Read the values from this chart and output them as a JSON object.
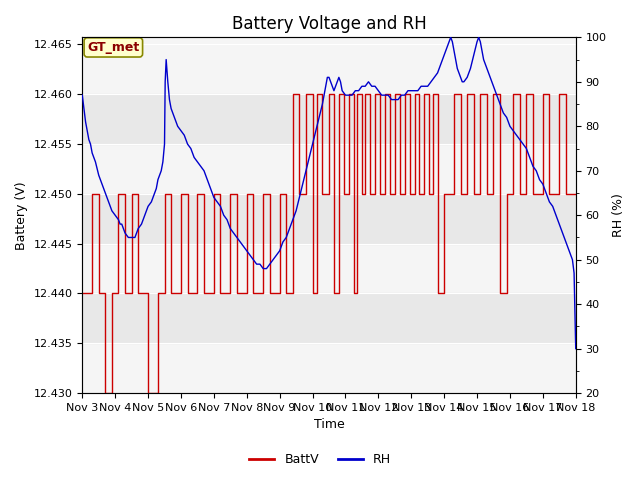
{
  "title": "Battery Voltage and RH",
  "xlabel": "Time",
  "ylabel_left": "Battery (V)",
  "ylabel_right": "RH (%)",
  "annotation": "GT_met",
  "ylim_left": [
    12.43,
    12.4657
  ],
  "ylim_right": [
    20,
    100
  ],
  "yticks_left": [
    12.43,
    12.435,
    12.44,
    12.445,
    12.45,
    12.455,
    12.46,
    12.465
  ],
  "yticks_right": [
    20,
    30,
    40,
    50,
    60,
    70,
    80,
    90,
    100
  ],
  "xtick_labels": [
    "Nov 3",
    "Nov 4",
    "Nov 5",
    "Nov 6",
    "Nov 7",
    "Nov 8",
    "Nov 9",
    "Nov 10",
    "Nov 11",
    "Nov 12",
    "Nov 13",
    "Nov 14",
    "Nov 15",
    "Nov 16",
    "Nov 17",
    "Nov 18"
  ],
  "battv_color": "#cc0000",
  "rh_color": "#0000cc",
  "legend_battv": "BattV",
  "legend_rh": "RH",
  "bg_outer": "#ffffff",
  "bg_inner": "#f5f5f5",
  "bg_band_light": "#e8e8e8",
  "title_fontsize": 12,
  "label_fontsize": 9,
  "tick_fontsize": 8,
  "num_days": 15,
  "battv_data": [
    [
      0.0,
      12.44
    ],
    [
      0.3,
      12.44
    ],
    [
      0.3,
      12.45
    ],
    [
      0.5,
      12.45
    ],
    [
      0.5,
      12.44
    ],
    [
      0.7,
      12.44
    ],
    [
      0.7,
      12.43
    ],
    [
      0.9,
      12.43
    ],
    [
      0.9,
      12.44
    ],
    [
      1.1,
      12.44
    ],
    [
      1.1,
      12.45
    ],
    [
      1.3,
      12.45
    ],
    [
      1.3,
      12.44
    ],
    [
      1.5,
      12.44
    ],
    [
      1.5,
      12.45
    ],
    [
      1.7,
      12.45
    ],
    [
      1.7,
      12.44
    ],
    [
      2.0,
      12.44
    ],
    [
      2.0,
      12.43
    ],
    [
      2.3,
      12.43
    ],
    [
      2.3,
      12.44
    ],
    [
      2.5,
      12.44
    ],
    [
      2.5,
      12.45
    ],
    [
      2.7,
      12.45
    ],
    [
      2.7,
      12.44
    ],
    [
      3.0,
      12.44
    ],
    [
      3.0,
      12.45
    ],
    [
      3.2,
      12.45
    ],
    [
      3.2,
      12.44
    ],
    [
      3.5,
      12.44
    ],
    [
      3.5,
      12.45
    ],
    [
      3.7,
      12.45
    ],
    [
      3.7,
      12.44
    ],
    [
      4.0,
      12.44
    ],
    [
      4.0,
      12.45
    ],
    [
      4.2,
      12.45
    ],
    [
      4.2,
      12.44
    ],
    [
      4.5,
      12.44
    ],
    [
      4.5,
      12.45
    ],
    [
      4.7,
      12.45
    ],
    [
      4.7,
      12.44
    ],
    [
      5.0,
      12.44
    ],
    [
      5.0,
      12.45
    ],
    [
      5.2,
      12.45
    ],
    [
      5.2,
      12.44
    ],
    [
      5.5,
      12.44
    ],
    [
      5.5,
      12.45
    ],
    [
      5.7,
      12.45
    ],
    [
      5.7,
      12.44
    ],
    [
      6.0,
      12.44
    ],
    [
      6.0,
      12.45
    ],
    [
      6.2,
      12.45
    ],
    [
      6.2,
      12.44
    ],
    [
      6.4,
      12.44
    ],
    [
      6.4,
      12.46
    ],
    [
      6.6,
      12.46
    ],
    [
      6.6,
      12.45
    ],
    [
      6.8,
      12.45
    ],
    [
      6.8,
      12.46
    ],
    [
      7.0,
      12.46
    ],
    [
      7.0,
      12.44
    ],
    [
      7.15,
      12.44
    ],
    [
      7.15,
      12.46
    ],
    [
      7.3,
      12.46
    ],
    [
      7.3,
      12.45
    ],
    [
      7.5,
      12.45
    ],
    [
      7.5,
      12.46
    ],
    [
      7.65,
      12.46
    ],
    [
      7.65,
      12.44
    ],
    [
      7.8,
      12.44
    ],
    [
      7.8,
      12.46
    ],
    [
      7.95,
      12.46
    ],
    [
      7.95,
      12.45
    ],
    [
      8.1,
      12.45
    ],
    [
      8.1,
      12.46
    ],
    [
      8.25,
      12.46
    ],
    [
      8.25,
      12.44
    ],
    [
      8.35,
      12.44
    ],
    [
      8.35,
      12.46
    ],
    [
      8.5,
      12.46
    ],
    [
      8.5,
      12.45
    ],
    [
      8.6,
      12.45
    ],
    [
      8.6,
      12.46
    ],
    [
      8.75,
      12.46
    ],
    [
      8.75,
      12.45
    ],
    [
      8.9,
      12.45
    ],
    [
      8.9,
      12.46
    ],
    [
      9.05,
      12.46
    ],
    [
      9.05,
      12.45
    ],
    [
      9.2,
      12.45
    ],
    [
      9.2,
      12.46
    ],
    [
      9.35,
      12.46
    ],
    [
      9.35,
      12.45
    ],
    [
      9.5,
      12.45
    ],
    [
      9.5,
      12.46
    ],
    [
      9.65,
      12.46
    ],
    [
      9.65,
      12.45
    ],
    [
      9.8,
      12.45
    ],
    [
      9.8,
      12.46
    ],
    [
      9.95,
      12.46
    ],
    [
      9.95,
      12.45
    ],
    [
      10.1,
      12.45
    ],
    [
      10.1,
      12.46
    ],
    [
      10.25,
      12.46
    ],
    [
      10.25,
      12.45
    ],
    [
      10.4,
      12.45
    ],
    [
      10.4,
      12.46
    ],
    [
      10.55,
      12.46
    ],
    [
      10.55,
      12.45
    ],
    [
      10.65,
      12.45
    ],
    [
      10.65,
      12.46
    ],
    [
      10.8,
      12.46
    ],
    [
      10.8,
      12.44
    ],
    [
      11.0,
      12.44
    ],
    [
      11.0,
      12.45
    ],
    [
      11.3,
      12.45
    ],
    [
      11.3,
      12.46
    ],
    [
      11.5,
      12.46
    ],
    [
      11.5,
      12.45
    ],
    [
      11.7,
      12.45
    ],
    [
      11.7,
      12.46
    ],
    [
      11.9,
      12.46
    ],
    [
      11.9,
      12.45
    ],
    [
      12.1,
      12.45
    ],
    [
      12.1,
      12.46
    ],
    [
      12.3,
      12.46
    ],
    [
      12.3,
      12.45
    ],
    [
      12.5,
      12.45
    ],
    [
      12.5,
      12.46
    ],
    [
      12.7,
      12.46
    ],
    [
      12.7,
      12.44
    ],
    [
      12.9,
      12.44
    ],
    [
      12.9,
      12.45
    ],
    [
      13.1,
      12.45
    ],
    [
      13.1,
      12.46
    ],
    [
      13.3,
      12.46
    ],
    [
      13.3,
      12.45
    ],
    [
      13.5,
      12.45
    ],
    [
      13.5,
      12.46
    ],
    [
      13.7,
      12.46
    ],
    [
      13.7,
      12.45
    ],
    [
      14.0,
      12.45
    ],
    [
      14.0,
      12.46
    ],
    [
      14.2,
      12.46
    ],
    [
      14.2,
      12.45
    ],
    [
      14.5,
      12.45
    ],
    [
      14.5,
      12.46
    ],
    [
      14.7,
      12.46
    ],
    [
      14.7,
      12.45
    ],
    [
      15.0,
      12.45
    ]
  ],
  "rh_data": [
    [
      0.0,
      87
    ],
    [
      0.05,
      84
    ],
    [
      0.1,
      81
    ],
    [
      0.15,
      79
    ],
    [
      0.2,
      77
    ],
    [
      0.25,
      76
    ],
    [
      0.3,
      74
    ],
    [
      0.4,
      72
    ],
    [
      0.5,
      69
    ],
    [
      0.6,
      67
    ],
    [
      0.7,
      65
    ],
    [
      0.8,
      63
    ],
    [
      0.9,
      61
    ],
    [
      1.0,
      60
    ],
    [
      1.1,
      59
    ],
    [
      1.15,
      58
    ],
    [
      1.2,
      58
    ],
    [
      1.25,
      57
    ],
    [
      1.3,
      56
    ],
    [
      1.4,
      55
    ],
    [
      1.5,
      55
    ],
    [
      1.6,
      55
    ],
    [
      1.65,
      56
    ],
    [
      1.7,
      57
    ],
    [
      1.8,
      58
    ],
    [
      1.9,
      60
    ],
    [
      2.0,
      62
    ],
    [
      2.1,
      63
    ],
    [
      2.2,
      65
    ],
    [
      2.25,
      66
    ],
    [
      2.3,
      68
    ],
    [
      2.4,
      70
    ],
    [
      2.45,
      72
    ],
    [
      2.5,
      76
    ],
    [
      2.52,
      90
    ],
    [
      2.55,
      95
    ],
    [
      2.57,
      93
    ],
    [
      2.6,
      90
    ],
    [
      2.65,
      86
    ],
    [
      2.7,
      84
    ],
    [
      2.8,
      82
    ],
    [
      2.9,
      80
    ],
    [
      3.0,
      79
    ],
    [
      3.1,
      78
    ],
    [
      3.2,
      76
    ],
    [
      3.3,
      75
    ],
    [
      3.4,
      73
    ],
    [
      3.5,
      72
    ],
    [
      3.6,
      71
    ],
    [
      3.7,
      70
    ],
    [
      3.8,
      68
    ],
    [
      3.9,
      66
    ],
    [
      4.0,
      64
    ],
    [
      4.1,
      63
    ],
    [
      4.2,
      62
    ],
    [
      4.3,
      60
    ],
    [
      4.4,
      59
    ],
    [
      4.5,
      57
    ],
    [
      4.6,
      56
    ],
    [
      4.7,
      55
    ],
    [
      4.8,
      54
    ],
    [
      4.9,
      53
    ],
    [
      5.0,
      52
    ],
    [
      5.1,
      51
    ],
    [
      5.2,
      50
    ],
    [
      5.3,
      49
    ],
    [
      5.4,
      49
    ],
    [
      5.5,
      48
    ],
    [
      5.6,
      48
    ],
    [
      5.7,
      49
    ],
    [
      5.8,
      50
    ],
    [
      5.9,
      51
    ],
    [
      6.0,
      52
    ],
    [
      6.1,
      54
    ],
    [
      6.2,
      55
    ],
    [
      6.3,
      57
    ],
    [
      6.4,
      59
    ],
    [
      6.5,
      61
    ],
    [
      6.6,
      64
    ],
    [
      6.7,
      67
    ],
    [
      6.8,
      70
    ],
    [
      6.9,
      73
    ],
    [
      7.0,
      76
    ],
    [
      7.1,
      79
    ],
    [
      7.2,
      82
    ],
    [
      7.3,
      85
    ],
    [
      7.35,
      87
    ],
    [
      7.4,
      89
    ],
    [
      7.45,
      91
    ],
    [
      7.5,
      91
    ],
    [
      7.55,
      90
    ],
    [
      7.6,
      89
    ],
    [
      7.65,
      88
    ],
    [
      7.7,
      89
    ],
    [
      7.75,
      90
    ],
    [
      7.8,
      91
    ],
    [
      7.85,
      90
    ],
    [
      7.9,
      88
    ],
    [
      8.0,
      87
    ],
    [
      8.1,
      87
    ],
    [
      8.2,
      87
    ],
    [
      8.3,
      88
    ],
    [
      8.4,
      88
    ],
    [
      8.5,
      89
    ],
    [
      8.6,
      89
    ],
    [
      8.7,
      90
    ],
    [
      8.8,
      89
    ],
    [
      8.9,
      89
    ],
    [
      9.0,
      88
    ],
    [
      9.1,
      87
    ],
    [
      9.2,
      87
    ],
    [
      9.3,
      87
    ],
    [
      9.4,
      86
    ],
    [
      9.5,
      86
    ],
    [
      9.6,
      86
    ],
    [
      9.7,
      87
    ],
    [
      9.8,
      87
    ],
    [
      9.9,
      88
    ],
    [
      10.0,
      88
    ],
    [
      10.1,
      88
    ],
    [
      10.2,
      88
    ],
    [
      10.3,
      89
    ],
    [
      10.4,
      89
    ],
    [
      10.5,
      89
    ],
    [
      10.6,
      90
    ],
    [
      10.7,
      91
    ],
    [
      10.8,
      92
    ],
    [
      10.9,
      94
    ],
    [
      11.0,
      96
    ],
    [
      11.05,
      97
    ],
    [
      11.1,
      98
    ],
    [
      11.15,
      99
    ],
    [
      11.2,
      100
    ],
    [
      11.25,
      99
    ],
    [
      11.3,
      97
    ],
    [
      11.35,
      95
    ],
    [
      11.4,
      93
    ],
    [
      11.5,
      91
    ],
    [
      11.55,
      90
    ],
    [
      11.6,
      90
    ],
    [
      11.7,
      91
    ],
    [
      11.8,
      93
    ],
    [
      11.9,
      96
    ],
    [
      12.0,
      99
    ],
    [
      12.05,
      100
    ],
    [
      12.1,
      99
    ],
    [
      12.15,
      97
    ],
    [
      12.2,
      95
    ],
    [
      12.3,
      93
    ],
    [
      12.4,
      91
    ],
    [
      12.5,
      89
    ],
    [
      12.6,
      87
    ],
    [
      12.7,
      85
    ],
    [
      12.8,
      83
    ],
    [
      12.9,
      82
    ],
    [
      13.0,
      80
    ],
    [
      13.1,
      79
    ],
    [
      13.2,
      78
    ],
    [
      13.3,
      77
    ],
    [
      13.4,
      76
    ],
    [
      13.5,
      75
    ],
    [
      13.6,
      73
    ],
    [
      13.7,
      71
    ],
    [
      13.8,
      70
    ],
    [
      13.9,
      68
    ],
    [
      14.0,
      67
    ],
    [
      14.1,
      65
    ],
    [
      14.2,
      63
    ],
    [
      14.3,
      62
    ],
    [
      14.4,
      60
    ],
    [
      14.5,
      58
    ],
    [
      14.6,
      56
    ],
    [
      14.7,
      54
    ],
    [
      14.8,
      52
    ],
    [
      14.9,
      50
    ],
    [
      14.95,
      47
    ],
    [
      15.0,
      30
    ]
  ]
}
